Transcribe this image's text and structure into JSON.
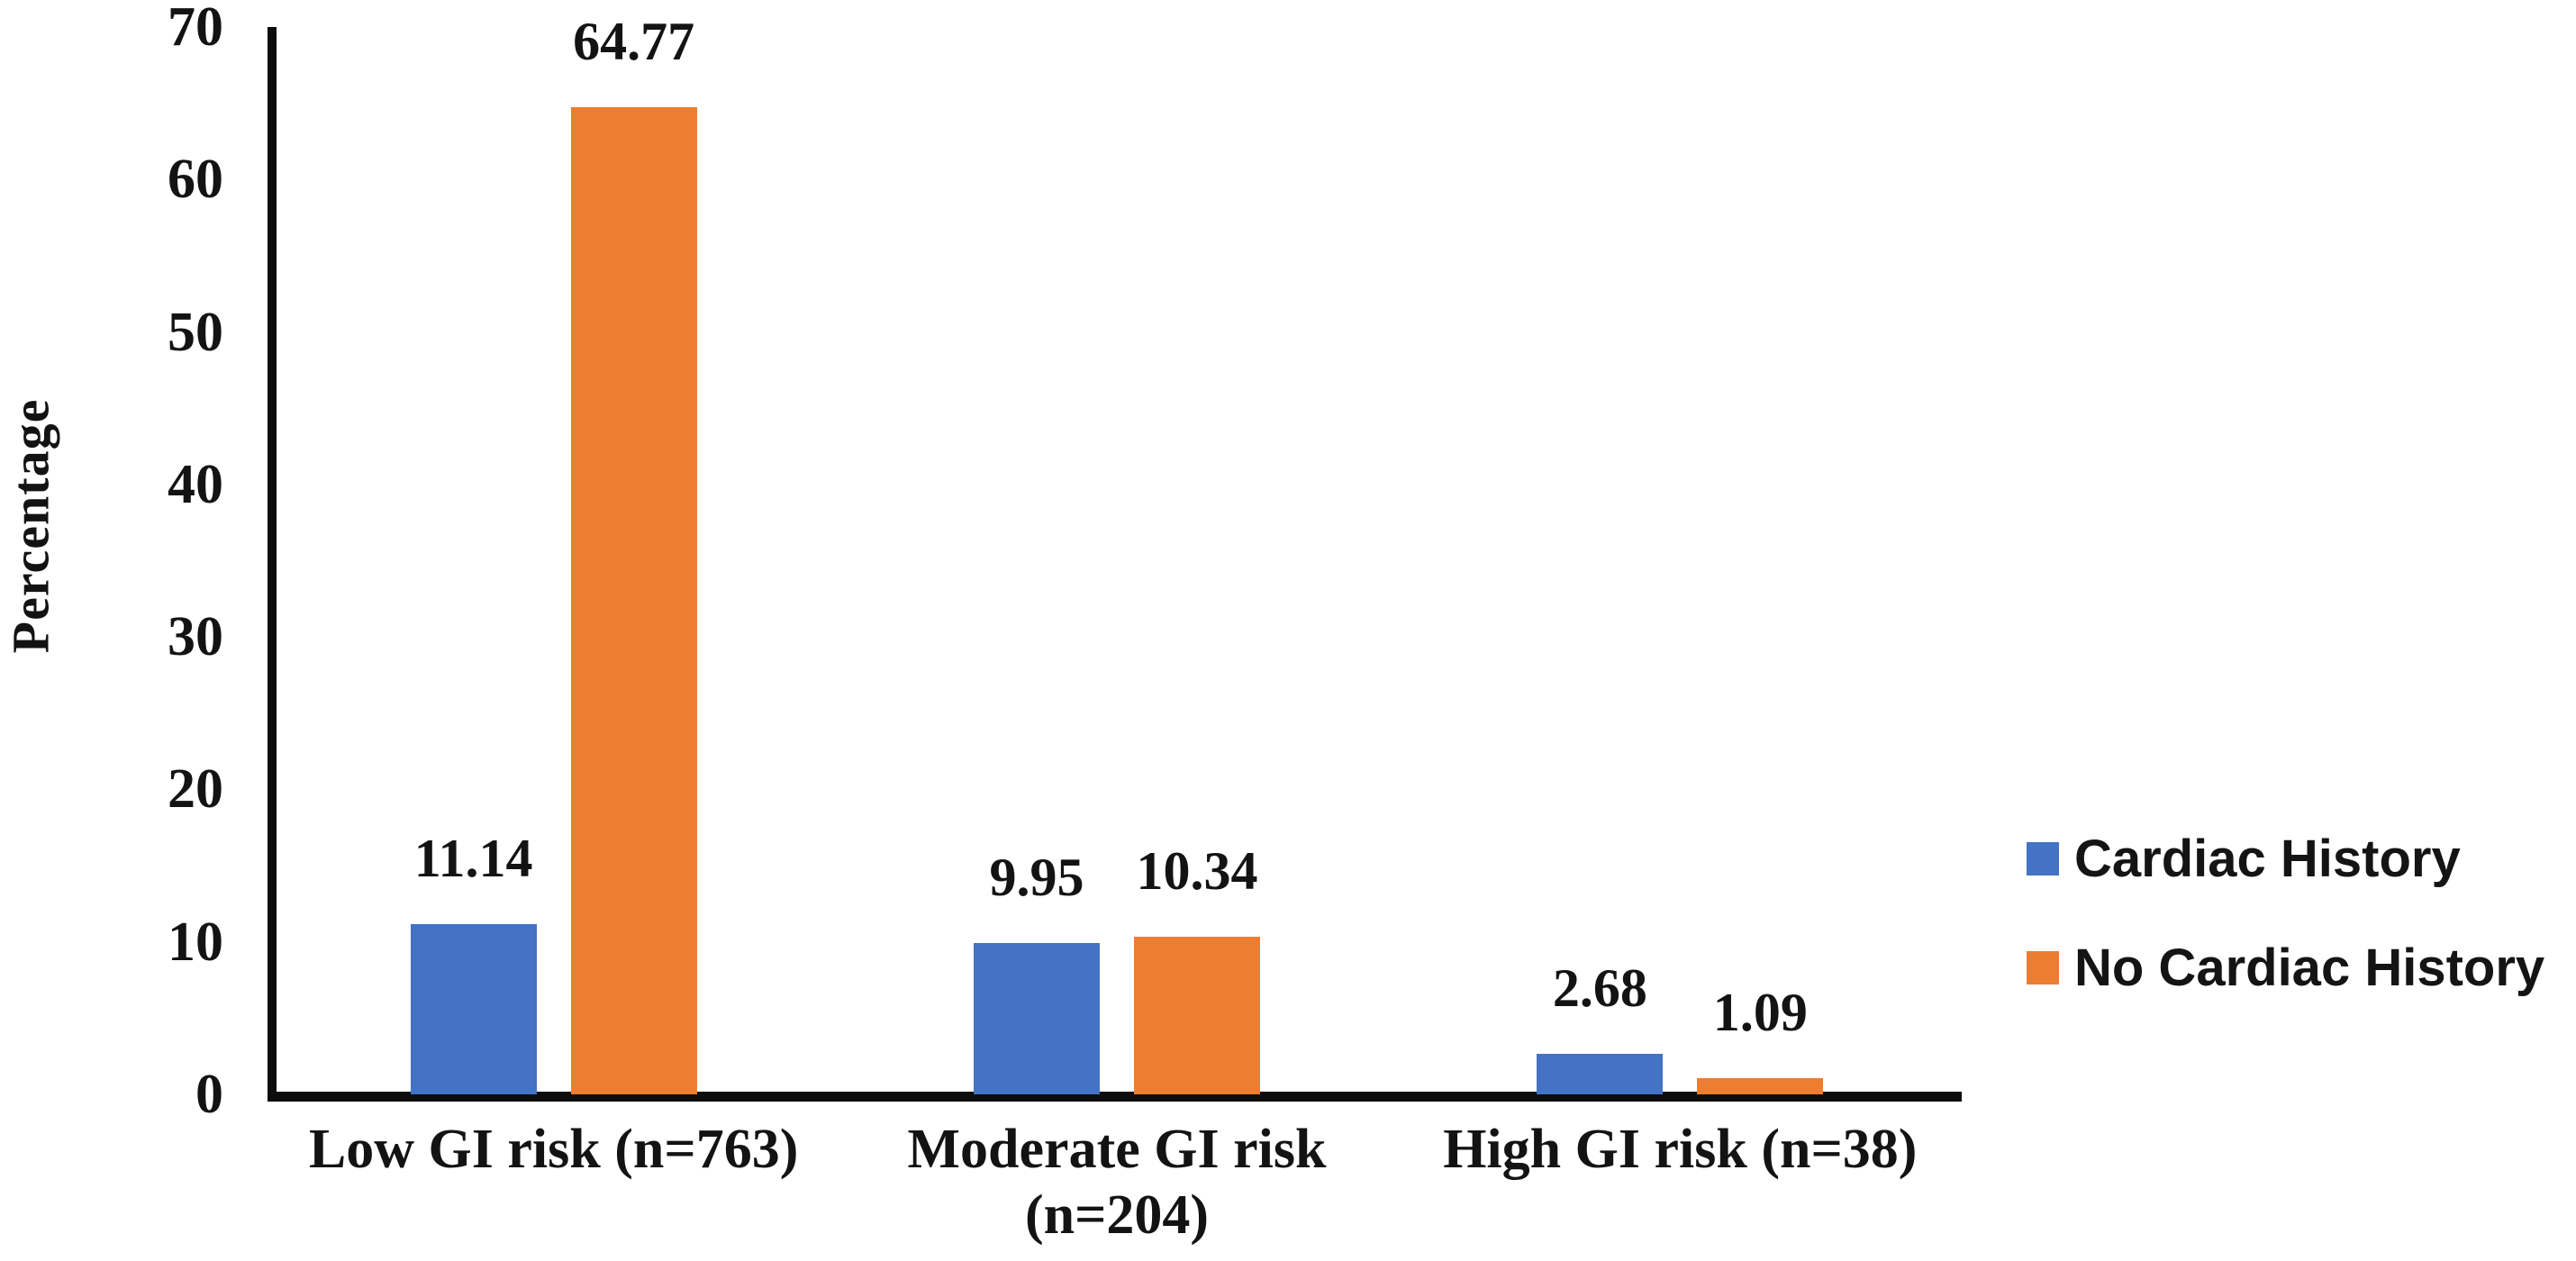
{
  "chart_data": {
    "type": "bar",
    "title": "",
    "xlabel": "",
    "ylabel": "Percentage",
    "ylim": [
      0,
      70
    ],
    "yticks": [
      0,
      10,
      20,
      30,
      40,
      50,
      60,
      70
    ],
    "grid": false,
    "legend_position": "right",
    "categories": [
      "Low GI risk (n=763)",
      "Moderate GI risk (n=204)",
      "High GI risk (n=38)"
    ],
    "category_label_lines": [
      [
        "Low GI risk (n=763)"
      ],
      [
        "Moderate GI risk",
        "(n=204)"
      ],
      [
        "High GI risk (n=38)"
      ]
    ],
    "series": [
      {
        "name": "Cardiac History",
        "color": "#4472C4",
        "values": [
          11.14,
          9.95,
          2.68
        ]
      },
      {
        "name": "No Cardiac History",
        "color": "#ED7D31",
        "values": [
          64.77,
          10.34,
          1.09
        ]
      }
    ],
    "value_label_format": "2dp",
    "axis_color": "#0d0d0d",
    "text_color": "#131313"
  }
}
